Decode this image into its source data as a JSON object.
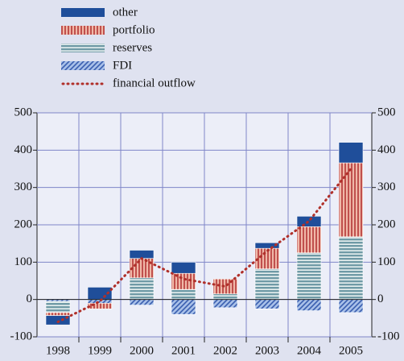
{
  "chart_data": {
    "type": "bar",
    "stacked": true,
    "categories": [
      "1998",
      "1999",
      "2000",
      "2001",
      "2002",
      "2003",
      "2004",
      "2005"
    ],
    "series": [
      {
        "name": "other",
        "color": "#1f4e9a",
        "values": [
          -25,
          33,
          22,
          30,
          0,
          15,
          28,
          55
        ]
      },
      {
        "name": "portfolio",
        "color": "#c0504d",
        "values": [
          -8,
          -15,
          52,
          43,
          40,
          55,
          70,
          198
        ]
      },
      {
        "name": "reserves",
        "color": "#6f9aa6",
        "values": [
          -30,
          0,
          58,
          27,
          15,
          82,
          125,
          168
        ]
      },
      {
        "name": "FDI",
        "color": "#3a5fb0",
        "values": [
          -5,
          -10,
          -15,
          -40,
          -22,
          -25,
          -30,
          -35
        ]
      },
      {
        "name": "financial outflow",
        "color": "#b0302a",
        "type": "line",
        "values": [
          -60,
          -5,
          110,
          55,
          35,
          130,
          210,
          350
        ]
      }
    ],
    "ylim": [
      -100,
      500
    ],
    "yticks": [
      -100,
      0,
      100,
      200,
      300,
      400,
      500
    ],
    "y2lim": [
      -100,
      500
    ],
    "y2ticks": [
      -100,
      0,
      100,
      200,
      300,
      400,
      500
    ],
    "grid": true
  }
}
